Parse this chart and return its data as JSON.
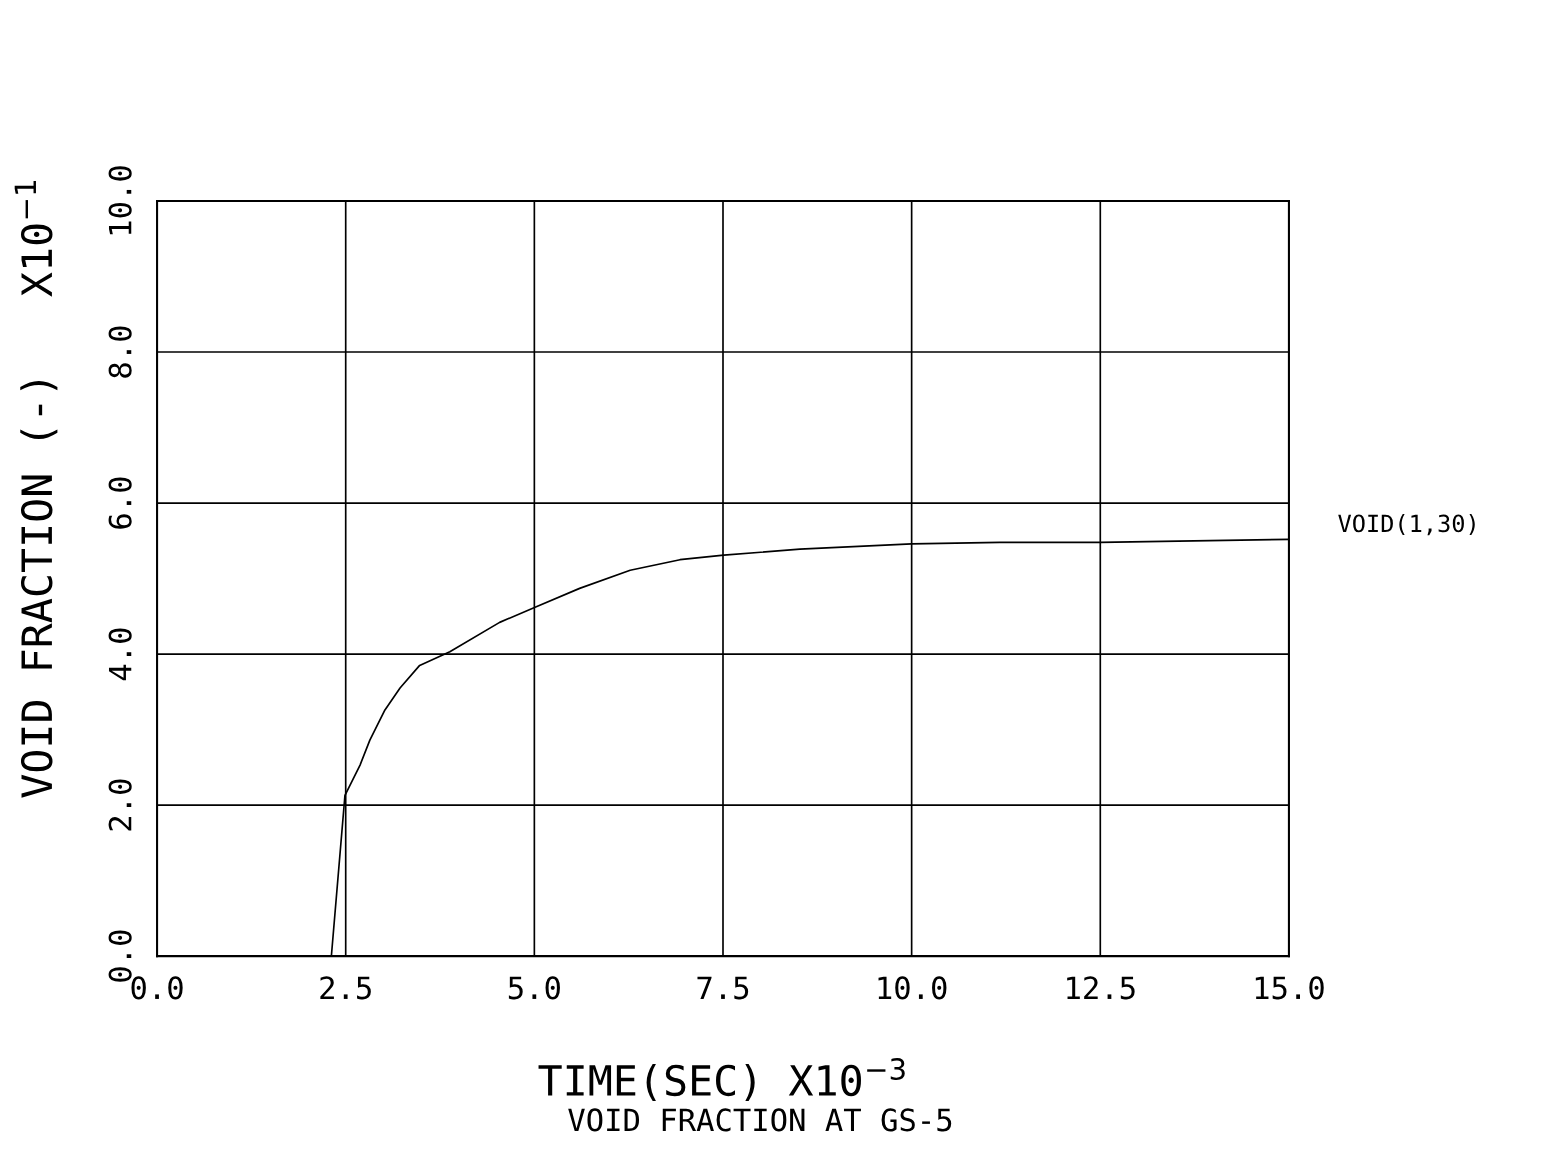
{
  "chart_data": {
    "type": "line",
    "title": "VOID FRACTION AT GS-5",
    "xlabel": "TIME(SEC) X10$^{−3}$",
    "ylabel": "VOID FRACTION (-)   X10$^{−1}$",
    "series": [
      {
        "name": "VOID(1,30)",
        "color": "#000000",
        "x": [
          0.0,
          2.31,
          2.49,
          2.69,
          2.82,
          3.02,
          3.22,
          3.48,
          3.88,
          4.54,
          5.01,
          5.6,
          6.27,
          6.93,
          7.51,
          8.52,
          10.0,
          11.17,
          12.5,
          15.0
        ],
        "values": [
          0.0,
          0.0,
          2.13,
          2.53,
          2.86,
          3.26,
          3.55,
          3.85,
          4.03,
          4.42,
          4.62,
          4.87,
          5.11,
          5.25,
          5.31,
          5.39,
          5.46,
          5.48,
          5.48,
          5.52
        ]
      }
    ],
    "xlim": [
      0,
      15
    ],
    "ylim": [
      0,
      10
    ],
    "xticks": [
      {
        "value": 0,
        "label": "0.0"
      },
      {
        "value": 2.5,
        "label": "2.5"
      },
      {
        "value": 5,
        "label": "5.0"
      },
      {
        "value": 7.5,
        "label": "7.5"
      },
      {
        "value": 10,
        "label": "10.0"
      },
      {
        "value": 12.5,
        "label": "12.5"
      },
      {
        "value": 15,
        "label": "15.0"
      }
    ],
    "yticks": [
      {
        "value": 0,
        "label": "0.0"
      },
      {
        "value": 2,
        "label": "2.0"
      },
      {
        "value": 4,
        "label": "4.0"
      },
      {
        "value": 6,
        "label": "6.0"
      },
      {
        "value": 8,
        "label": "8.0"
      },
      {
        "value": 10,
        "label": "10.0"
      }
    ],
    "grid": true,
    "line_style": "solid",
    "marker": "none",
    "legend": false
  }
}
